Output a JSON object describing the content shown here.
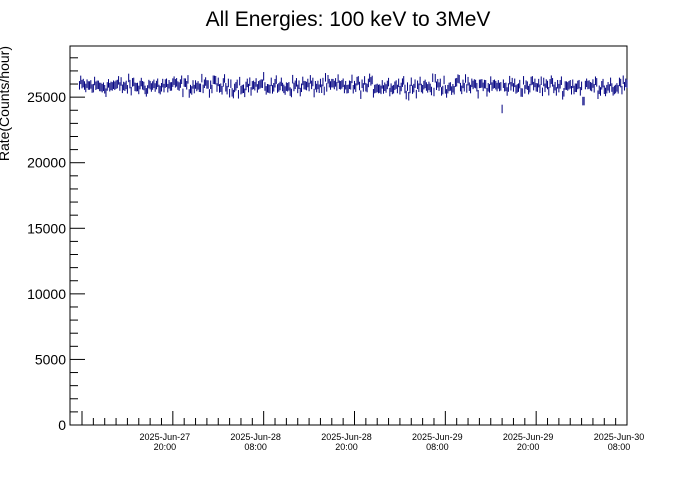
{
  "chart_data": {
    "type": "scatter",
    "title": "All Energies:  100 keV to 3MeV",
    "xlabel": "",
    "ylabel": "Rate(Counts/hour)",
    "ylim": [
      0,
      28900
    ],
    "yticks": [
      0,
      5000,
      10000,
      15000,
      20000,
      25000
    ],
    "y_minor_step": 1000,
    "xlim": [
      0,
      72
    ],
    "x_unit": "hours after 2025-Jun-27 08:00 (axis shows date/time labels)",
    "xticks": [
      {
        "at": 12,
        "date": "2025-Jun-27",
        "time": "20:00"
      },
      {
        "at": 24,
        "date": "2025-Jun-28",
        "time": "08:00"
      },
      {
        "at": 36,
        "date": "2025-Jun-28",
        "time": "20:00"
      },
      {
        "at": 48,
        "date": "2025-Jun-29",
        "time": "08:00"
      },
      {
        "at": 60,
        "date": "2025-Jun-29",
        "time": "20:00"
      },
      {
        "at": 72,
        "date": "2025-Jun-30",
        "time": "08:00"
      }
    ],
    "series": [
      {
        "color": "#000080",
        "points_per_hour": 6,
        "baseline": 25850,
        "noise_amplitude": 550,
        "error_bar": 650,
        "dips": [
          {
            "at": 55.5,
            "value": 24100
          },
          {
            "at": 66.3,
            "value": 24700
          }
        ]
      }
    ],
    "grid": false,
    "legend": "none"
  }
}
